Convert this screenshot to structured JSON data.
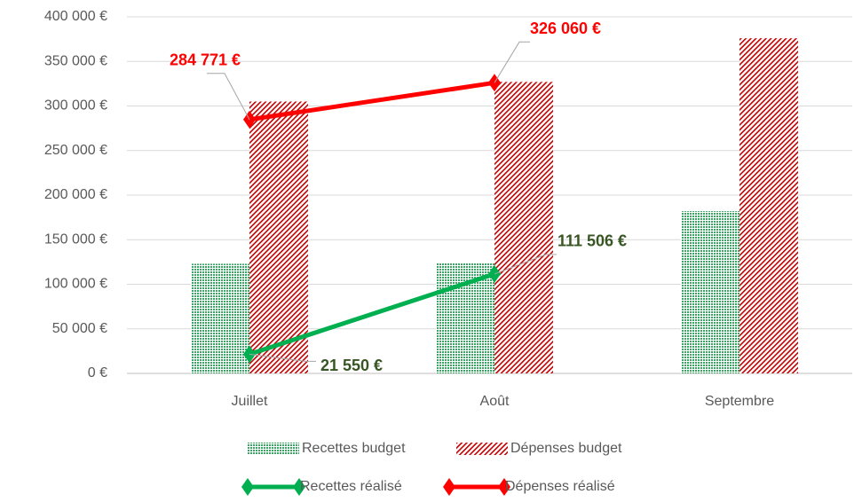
{
  "chart_data": {
    "type": "bar",
    "categories": [
      "Juillet",
      "Août",
      "Septembre"
    ],
    "series": [
      {
        "name": "Recettes budget",
        "type": "bar",
        "color": "#3aa564",
        "values": [
          123000,
          124000,
          182000
        ]
      },
      {
        "name": "Dépenses budget",
        "type": "bar",
        "color": "#c00000",
        "values": [
          305000,
          327000,
          376000
        ]
      },
      {
        "name": "Recettes réalisé",
        "type": "line",
        "color": "#00b050",
        "values": [
          21550,
          111506,
          null
        ],
        "value_labels": [
          "21 550 €",
          "111 506 €",
          null
        ]
      },
      {
        "name": "Dépenses réalisé",
        "type": "line",
        "color": "#ff0000",
        "values": [
          284771,
          326060,
          null
        ],
        "value_labels": [
          "284 771 €",
          "326 060 €",
          null
        ]
      }
    ],
    "ylim": [
      0,
      400000
    ],
    "yticks": [
      {
        "value": 0,
        "label": "0 €"
      },
      {
        "value": 50000,
        "label": "50 000 €"
      },
      {
        "value": 100000,
        "label": "100 000 €"
      },
      {
        "value": 150000,
        "label": "150 000 €"
      },
      {
        "value": 200000,
        "label": "200 000 €"
      },
      {
        "value": 250000,
        "label": "250 000 €"
      },
      {
        "value": 300000,
        "label": "300 000 €"
      },
      {
        "value": 350000,
        "label": "350 000 €"
      },
      {
        "value": 400000,
        "label": "400 000 €"
      }
    ],
    "grid": true,
    "legend": "bottom"
  }
}
